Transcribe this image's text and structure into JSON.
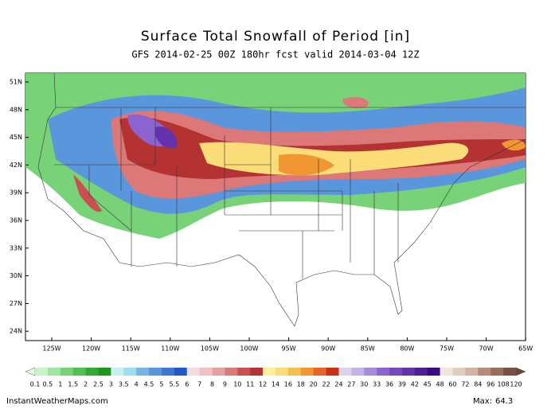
{
  "header": {
    "title": "Surface Total Snowfall of Period [in]",
    "subtitle": "GFS 2014-02-25 00Z 180hr fcst valid 2014-03-04 12Z"
  },
  "map": {
    "lat_labels": [
      "51N",
      "48N",
      "45N",
      "42N",
      "39N",
      "36N",
      "33N",
      "30N",
      "27N",
      "24N"
    ],
    "lon_labels": [
      "125W",
      "120W",
      "115W",
      "110W",
      "105W",
      "100W",
      "95W",
      "90W",
      "85W",
      "80W",
      "75W",
      "70W",
      "65W"
    ]
  },
  "colorbar": {
    "labels": [
      "0.1",
      "0.5",
      "1",
      "1.5",
      "2",
      "2.5",
      "3",
      "3.5",
      "4",
      "4.5",
      "5",
      "5.5",
      "6",
      "7",
      "8",
      "9",
      "10",
      "11",
      "12",
      "14",
      "16",
      "18",
      "20",
      "22",
      "24",
      "27",
      "30",
      "33",
      "36",
      "39",
      "42",
      "45",
      "48",
      "60",
      "72",
      "84",
      "96",
      "108",
      "120"
    ],
    "colors": [
      "#c8f5c8",
      "#a0e6a0",
      "#78d278",
      "#50c050",
      "#32aa32",
      "#1e961e",
      "#c8f0f0",
      "#a0dcf0",
      "#78b4e6",
      "#5a96dc",
      "#3c78d2",
      "#1e5ac8",
      "#f5dcdc",
      "#f0c0c0",
      "#e6a0a0",
      "#dc7878",
      "#c85050",
      "#b43232",
      "#fff0a0",
      "#fadc78",
      "#f5be50",
      "#f09632",
      "#e66428",
      "#c83219",
      "#dcd2f0",
      "#c3b4e6",
      "#a58cdc",
      "#8c64d2",
      "#7846be",
      "#6432aa",
      "#501e96",
      "#3c0a82",
      "#f0e6dc",
      "#e1cdbe",
      "#d2b4a0",
      "#b48c78",
      "#966e5a",
      "#785040"
    ],
    "under_color": "#e6ffe6",
    "over_color": "#6e4632"
  },
  "footer": {
    "site": "InstantWeatherMaps.com",
    "max_label": "Max:",
    "max_value": "64.3"
  }
}
